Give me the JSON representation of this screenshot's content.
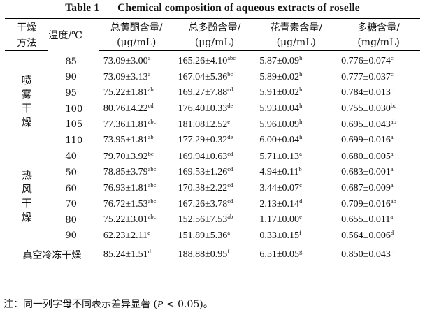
{
  "caption": {
    "table_no": "Table 1",
    "title": "Chemical composition of aqueous extracts of roselle"
  },
  "header": {
    "method_l1": "干燥",
    "method_l2": "方法",
    "temp": "温度/℃",
    "cols": [
      {
        "l1": "总黄酮含量/",
        "l2": "(μg/mL)"
      },
      {
        "l1": "总多酚含量/",
        "l2": "(μg/mL)"
      },
      {
        "l1": "花青素含量/",
        "l2": "(μg/mL)"
      },
      {
        "l1": "多糖含量/",
        "l2": "(mg/mL)"
      }
    ]
  },
  "groups": [
    {
      "method": [
        "喷",
        "雾",
        "干",
        "燥"
      ],
      "rows": [
        {
          "temp": "85",
          "v": [
            [
              "73.09±3.00",
              "a"
            ],
            [
              "165.26±4.10",
              "abc"
            ],
            [
              "5.87±0.09",
              "h"
            ],
            [
              "0.776±0.074",
              "c"
            ]
          ]
        },
        {
          "temp": "90",
          "v": [
            [
              "73.09±3.13",
              "a"
            ],
            [
              "167.04±5.36",
              "bc"
            ],
            [
              "5.89±0.02",
              "h"
            ],
            [
              "0.777±0.037",
              "c"
            ]
          ]
        },
        {
          "temp": "95",
          "v": [
            [
              "75.22±1.81",
              "abc"
            ],
            [
              "169.27±7.88",
              "cd"
            ],
            [
              "5.91±0.02",
              "h"
            ],
            [
              "0.784±0.013",
              "c"
            ]
          ]
        },
        {
          "temp": "100",
          "v": [
            [
              "80.76±4.22",
              "cd"
            ],
            [
              "176.40±0.33",
              "de"
            ],
            [
              "5.93±0.04",
              "h"
            ],
            [
              "0.755±0.030",
              "bc"
            ]
          ]
        },
        {
          "temp": "105",
          "v": [
            [
              "77.36±1.81",
              "abc"
            ],
            [
              "181.08±2.52",
              "e"
            ],
            [
              "5.96±0.09",
              "h"
            ],
            [
              "0.695±0.043",
              "ab"
            ]
          ]
        },
        {
          "temp": "110",
          "v": [
            [
              "73.95±1.81",
              "ab"
            ],
            [
              "177.29±0.32",
              "de"
            ],
            [
              "6.00±0.04",
              "h"
            ],
            [
              "0.699±0.016",
              "a"
            ]
          ]
        }
      ]
    },
    {
      "method": [
        "热",
        "风",
        "干",
        "燥"
      ],
      "rows": [
        {
          "temp": "40",
          "v": [
            [
              "79.70±3.92",
              "bc"
            ],
            [
              "169.94±0.63",
              "cd"
            ],
            [
              "5.71±0.13",
              "a"
            ],
            [
              "0.680±0.005",
              "a"
            ]
          ]
        },
        {
          "temp": "50",
          "v": [
            [
              "78.85±3.79",
              "abc"
            ],
            [
              "169.53±1.26",
              "cd"
            ],
            [
              "4.94±0.11",
              "b"
            ],
            [
              "0.683±0.001",
              "a"
            ]
          ]
        },
        {
          "temp": "60",
          "v": [
            [
              "76.93±1.81",
              "abc"
            ],
            [
              "170.38±2.22",
              "cd"
            ],
            [
              "3.44±0.07",
              "c"
            ],
            [
              "0.687±0.009",
              "a"
            ]
          ]
        },
        {
          "temp": "70",
          "v": [
            [
              "76.72±1.53",
              "abc"
            ],
            [
              "167.26±3.78",
              "cd"
            ],
            [
              "2.13±0.14",
              "d"
            ],
            [
              "0.709±0.016",
              "ab"
            ]
          ]
        },
        {
          "temp": "80",
          "v": [
            [
              "75.22±3.01",
              "abc"
            ],
            [
              "152.56±7.53",
              "ab"
            ],
            [
              "1.17±0.00",
              "e"
            ],
            [
              "0.655±0.011",
              "a"
            ]
          ]
        },
        {
          "temp": "90",
          "v": [
            [
              "62.23±2.11",
              "e"
            ],
            [
              "151.89±5.36",
              "a"
            ],
            [
              "0.33±0.15",
              "f"
            ],
            [
              "0.564±0.006",
              "d"
            ]
          ]
        }
      ]
    }
  ],
  "freeze": {
    "method": "真空冷冻干燥",
    "v": [
      [
        "85.24±1.51",
        "d"
      ],
      [
        "188.88±0.95",
        "f"
      ],
      [
        "6.51±0.05",
        "g"
      ],
      [
        "0.850±0.043",
        "c"
      ]
    ]
  },
  "note": {
    "prefix": "注：同一列字母不同表示差异显著 (",
    "p": "P",
    "suffix": " < 0.05)。"
  }
}
